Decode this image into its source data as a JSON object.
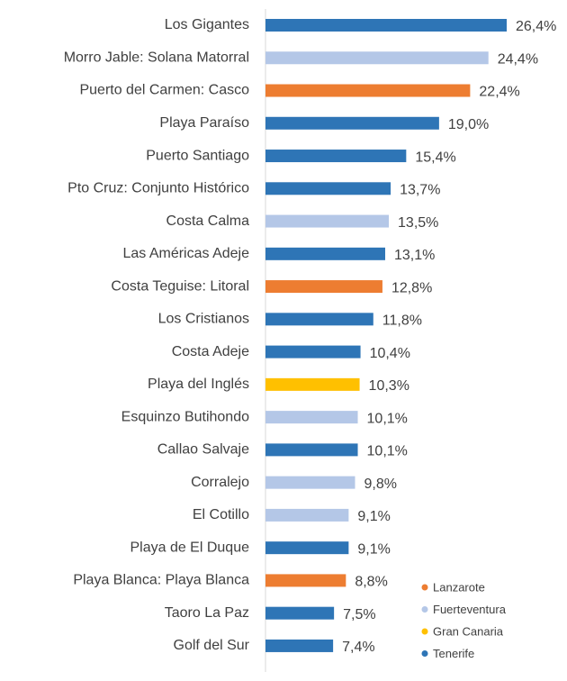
{
  "chart_data": {
    "type": "bar",
    "orientation": "horizontal",
    "categories": [
      "Los Gigantes",
      "Morro Jable: Solana Matorral",
      "Puerto del Carmen: Casco",
      "Playa Paraíso",
      "Puerto Santiago",
      "Pto Cruz: Conjunto Histórico",
      "Costa Calma",
      "Las Américas Adeje",
      "Costa Teguise: Litoral",
      "Los Cristianos",
      "Costa Adeje",
      "Playa del Inglés",
      "Esquinzo Butihondo",
      "Callao Salvaje",
      "Corralejo",
      "El Cotillo",
      "Playa de El Duque",
      "Playa Blanca: Playa Blanca",
      "Taoro La Paz",
      "Golf del Sur"
    ],
    "series": [
      {
        "name": "Lanzarote",
        "color": "#ed7d31",
        "values": [
          null,
          null,
          22.4,
          null,
          null,
          null,
          null,
          null,
          12.8,
          null,
          null,
          null,
          null,
          null,
          null,
          null,
          null,
          8.8,
          null,
          null
        ],
        "value_labels": [
          null,
          null,
          "22,4%",
          null,
          null,
          null,
          null,
          null,
          "12,8%",
          null,
          null,
          null,
          null,
          null,
          null,
          null,
          null,
          "8,8%",
          null,
          null
        ]
      },
      {
        "name": "Fuerteventura",
        "color": "#b4c7e7",
        "values": [
          null,
          24.4,
          null,
          null,
          null,
          null,
          13.5,
          null,
          null,
          null,
          null,
          null,
          10.1,
          null,
          9.8,
          9.1,
          null,
          null,
          null,
          null
        ],
        "value_labels": [
          null,
          "24,4%",
          null,
          null,
          null,
          null,
          "13,5%",
          null,
          null,
          null,
          null,
          null,
          "10,1%",
          null,
          "9,8%",
          "9,1%",
          null,
          null,
          null,
          null
        ]
      },
      {
        "name": "Gran Canaria",
        "color": "#ffc000",
        "values": [
          null,
          null,
          null,
          null,
          null,
          null,
          null,
          null,
          null,
          null,
          null,
          10.3,
          null,
          null,
          null,
          null,
          null,
          null,
          null,
          null
        ],
        "value_labels": [
          null,
          null,
          null,
          null,
          null,
          null,
          null,
          null,
          null,
          null,
          null,
          "10,3%",
          null,
          null,
          null,
          null,
          null,
          null,
          null,
          null
        ]
      },
      {
        "name": "Tenerife",
        "color": "#2e75b6",
        "values": [
          26.4,
          null,
          null,
          19.0,
          15.4,
          13.7,
          null,
          13.1,
          null,
          11.8,
          10.4,
          null,
          null,
          10.1,
          null,
          null,
          9.1,
          null,
          7.5,
          7.4
        ],
        "value_labels": [
          "26,4%",
          null,
          null,
          "19,0%",
          "15,4%",
          "13,7%",
          null,
          "13,1%",
          null,
          "11,8%",
          "10,4%",
          null,
          null,
          "10,1%",
          null,
          null,
          "9,1%",
          null,
          "7,5%",
          "7,4%"
        ]
      }
    ],
    "legend": "bottom-right"
  }
}
